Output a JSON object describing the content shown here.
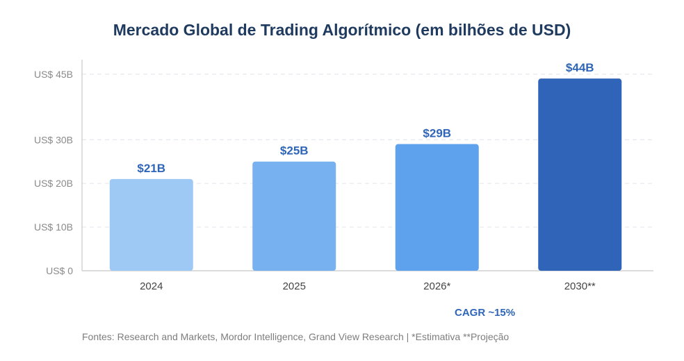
{
  "chart_data": {
    "type": "bar",
    "title": "Mercado Global de Trading Algorítmico (em bilhões de USD)",
    "xlabel": "",
    "ylabel": "",
    "categories": [
      "2024",
      "2025",
      "2026*",
      "2030**"
    ],
    "values": [
      21,
      25,
      29,
      44
    ],
    "value_labels": [
      "$21B",
      "$25B",
      "$29B",
      "$44B"
    ],
    "bar_colors": [
      "#9ec9f5",
      "#78b1f0",
      "#5ea2ee",
      "#3064b8"
    ],
    "ylim": [
      0,
      48
    ],
    "yticks": [
      0,
      10,
      20,
      30,
      45
    ],
    "ytick_labels": [
      "US$ 0",
      "US$ 10B",
      "US$ 20B",
      "US$ 30B",
      "US$ 45B"
    ],
    "grid": true,
    "annotation": "CAGR ~15%",
    "source": "Fontes: Research and Markets, Mordor Intelligence, Grand View Research | *Estimativa **Projeção"
  },
  "colors": {
    "title": "#1f3a5f",
    "value_label": "#2f65b8",
    "axis_tick_text": "#8a8a8a",
    "category_text": "#444444",
    "gridline": "#e4e8ee",
    "axis": "#c8c8c8"
  }
}
